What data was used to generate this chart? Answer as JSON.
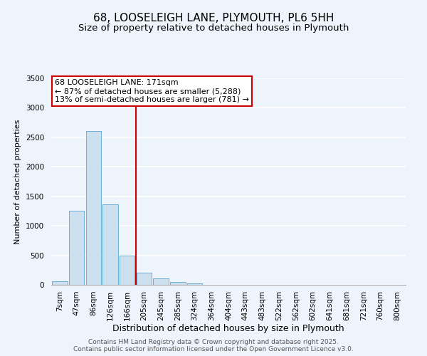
{
  "title": "68, LOOSELEIGH LANE, PLYMOUTH, PL6 5HH",
  "subtitle": "Size of property relative to detached houses in Plymouth",
  "bar_labels": [
    "7sqm",
    "47sqm",
    "86sqm",
    "126sqm",
    "166sqm",
    "205sqm",
    "245sqm",
    "285sqm",
    "324sqm",
    "364sqm",
    "404sqm",
    "443sqm",
    "483sqm",
    "522sqm",
    "562sqm",
    "602sqm",
    "641sqm",
    "681sqm",
    "721sqm",
    "760sqm",
    "800sqm"
  ],
  "bar_values": [
    55,
    1255,
    2610,
    1360,
    500,
    205,
    110,
    45,
    30,
    5,
    0,
    0,
    0,
    0,
    0,
    0,
    0,
    0,
    0,
    0,
    0
  ],
  "bar_color": "#cce0f0",
  "bar_edgecolor": "#6baed6",
  "vline_bin_index": 4,
  "vline_color": "#cc0000",
  "ylim": [
    0,
    3500
  ],
  "yticks": [
    0,
    500,
    1000,
    1500,
    2000,
    2500,
    3000,
    3500
  ],
  "xlabel": "Distribution of detached houses by size in Plymouth",
  "ylabel": "Number of detached properties",
  "annotation_line1": "68 LOOSELEIGH LANE: 171sqm",
  "annotation_line2": "← 87% of detached houses are smaller (5,288)",
  "annotation_line3": "13% of semi-detached houses are larger (781) →",
  "footnote1": "Contains HM Land Registry data © Crown copyright and database right 2025.",
  "footnote2": "Contains public sector information licensed under the Open Government Licence v3.0.",
  "bg_color": "#eef4fc",
  "plot_bg_color": "#eef4fc",
  "title_fontsize": 11,
  "subtitle_fontsize": 9.5,
  "xlabel_fontsize": 9,
  "ylabel_fontsize": 8,
  "annotation_fontsize": 8,
  "tick_fontsize": 7.5,
  "footnote_fontsize": 6.5
}
